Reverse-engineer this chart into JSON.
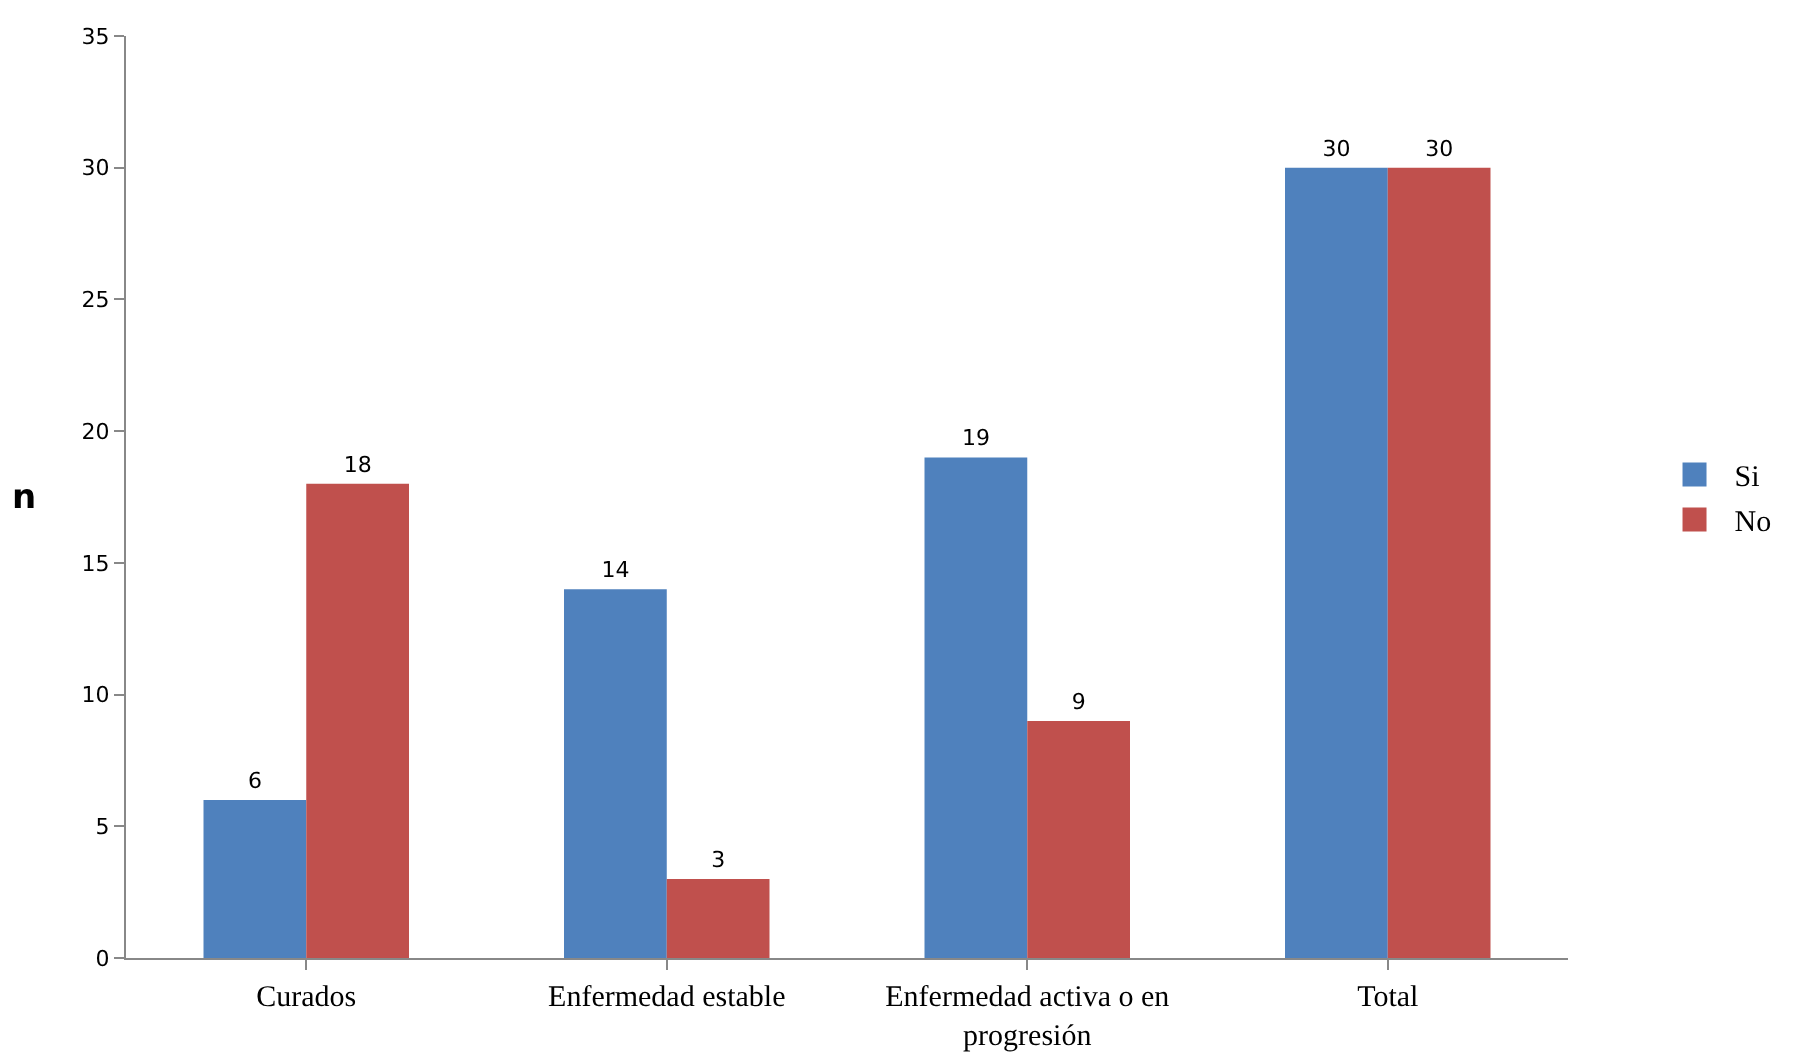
{
  "chart_data": {
    "type": "bar",
    "ylabel": "n",
    "categories": [
      "Curados",
      "Enfermedad estable",
      "Enfermedad activa o en progresión",
      "Total"
    ],
    "series": [
      {
        "name": "Si",
        "color": "#4f81bd",
        "values": [
          6,
          14,
          19,
          30
        ]
      },
      {
        "name": "No",
        "color": "#c0504d",
        "values": [
          18,
          3,
          9,
          30
        ]
      }
    ],
    "ylim": [
      0,
      35
    ],
    "yticks": [
      0,
      5,
      10,
      15,
      20,
      25,
      30,
      35
    ],
    "grid": false,
    "legend": "right",
    "data_labels": true
  }
}
